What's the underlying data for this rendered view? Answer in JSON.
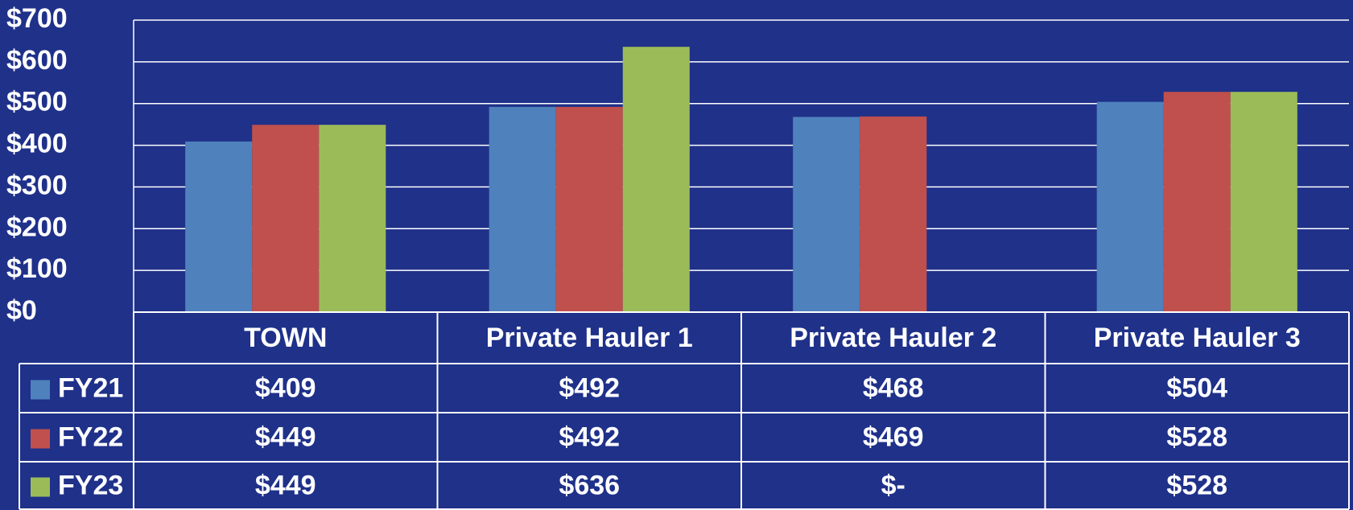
{
  "chart_data": {
    "type": "bar",
    "categories": [
      "TOWN",
      "Private Hauler 1",
      "Private Hauler 2",
      "Private Hauler 3"
    ],
    "series": [
      {
        "name": "FY21",
        "color": "#4f81bd",
        "values": [
          409,
          492,
          468,
          504
        ],
        "value_labels": [
          "$409",
          "$492",
          "$468",
          "$504"
        ]
      },
      {
        "name": "FY22",
        "color": "#c0504d",
        "values": [
          449,
          492,
          469,
          528
        ],
        "value_labels": [
          "$449",
          "$492",
          "$469",
          "$528"
        ]
      },
      {
        "name": "FY23",
        "color": "#9bbb59",
        "values": [
          449,
          636,
          0,
          528
        ],
        "value_labels": [
          "$449",
          "$636",
          "$-",
          "$528"
        ]
      }
    ],
    "ylim": [
      0,
      700
    ],
    "yticks": [
      {
        "value": 0,
        "label": "$0"
      },
      {
        "value": 100,
        "label": "$100"
      },
      {
        "value": 200,
        "label": "$200"
      },
      {
        "value": 300,
        "label": "$300"
      },
      {
        "value": 400,
        "label": "$400"
      },
      {
        "value": 500,
        "label": "$500"
      },
      {
        "value": 600,
        "label": "$600"
      },
      {
        "value": 700,
        "label": "$700"
      }
    ],
    "grid": true
  }
}
